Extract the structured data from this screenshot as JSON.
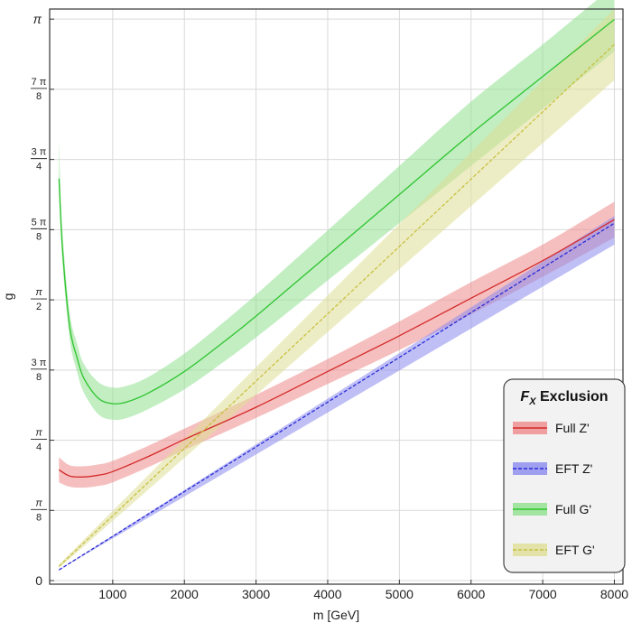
{
  "chart_data": {
    "type": "line",
    "xlabel": "m [GeV]",
    "ylabel": "g",
    "xlim": [
      120,
      8120
    ],
    "ylim": [
      -0.02,
      3.198
    ],
    "x_ticks": [
      1000,
      2000,
      3000,
      4000,
      5000,
      6000,
      7000,
      8000
    ],
    "y_ticks": [
      {
        "value": 0,
        "num": "0",
        "den": ""
      },
      {
        "value": 0.3927,
        "num": "π",
        "den": "8"
      },
      {
        "value": 0.7854,
        "num": "π",
        "den": "4"
      },
      {
        "value": 1.1781,
        "num": "3 π",
        "den": "8"
      },
      {
        "value": 1.5708,
        "num": "π",
        "den": "2"
      },
      {
        "value": 1.9635,
        "num": "5 π",
        "den": "8"
      },
      {
        "value": 2.3562,
        "num": "3 π",
        "den": "4"
      },
      {
        "value": 2.7489,
        "num": "7 π",
        "den": "8"
      },
      {
        "value": 3.1416,
        "num": "π",
        "den": ""
      }
    ],
    "grid": true,
    "legend_title_main": "F",
    "legend_title_sub": "X",
    "legend_title_rest": " Exclusion",
    "legend_position": "bottom-right",
    "series": [
      {
        "name": "Full Z'",
        "color": "#d42a2a",
        "band_color": "#ee8a8a",
        "style": "solid",
        "x": [
          250,
          400,
          600,
          800,
          1000,
          1500,
          2000,
          3000,
          4000,
          5000,
          6000,
          7000,
          8000
        ],
        "y": [
          0.62,
          0.585,
          0.58,
          0.59,
          0.61,
          0.695,
          0.79,
          0.97,
          1.17,
          1.37,
          1.58,
          1.79,
          2.02
        ],
        "lower": [
          0.55,
          0.525,
          0.52,
          0.53,
          0.55,
          0.635,
          0.73,
          0.91,
          1.1,
          1.29,
          1.49,
          1.7,
          1.92
        ],
        "upper": [
          0.69,
          0.645,
          0.64,
          0.65,
          0.67,
          0.755,
          0.85,
          1.04,
          1.24,
          1.45,
          1.67,
          1.88,
          2.12
        ]
      },
      {
        "name": "EFT Z'",
        "color": "#2a2ad8",
        "band_color": "#8a8aee",
        "style": "dashed",
        "x": [
          250,
          8000
        ],
        "y": [
          0.06,
          2.0
        ],
        "lower": [
          0.06,
          1.88
        ],
        "upper": [
          0.06,
          2.04
        ]
      },
      {
        "name": "Full G'",
        "color": "#2ec42e",
        "band_color": "#8fe08f",
        "style": "solid",
        "x": [
          250,
          300,
          400,
          500,
          600,
          800,
          1000,
          1200,
          1500,
          2000,
          2500,
          3000,
          4000,
          5000,
          6000,
          7000,
          8000
        ],
        "y": [
          2.25,
          1.85,
          1.42,
          1.25,
          1.13,
          1.02,
          0.99,
          1.0,
          1.05,
          1.17,
          1.32,
          1.48,
          1.82,
          2.16,
          2.5,
          2.82,
          3.14
        ],
        "lower": [
          2.17,
          1.77,
          1.35,
          1.17,
          1.05,
          0.93,
          0.9,
          0.91,
          0.96,
          1.07,
          1.21,
          1.36,
          1.68,
          2.0,
          2.32,
          2.64,
          2.96
        ],
        "upper": [
          2.46,
          1.95,
          1.5,
          1.33,
          1.21,
          1.11,
          1.08,
          1.09,
          1.14,
          1.27,
          1.43,
          1.6,
          1.96,
          2.32,
          2.68,
          3.0,
          3.33
        ]
      },
      {
        "name": "EFT G'",
        "color": "#c8c040",
        "band_color": "#dede96",
        "style": "dashed",
        "x": [
          250,
          8000
        ],
        "y": [
          0.08,
          3.0
        ],
        "lower": [
          0.07,
          2.8
        ],
        "upper": [
          0.09,
          3.2
        ]
      }
    ]
  }
}
